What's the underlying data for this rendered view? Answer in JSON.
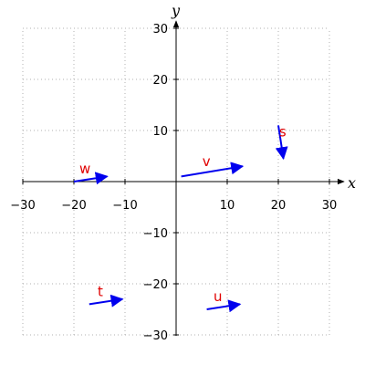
{
  "chart_data": {
    "type": "vector-plot",
    "xlabel": "x",
    "ylabel": "y",
    "xlim": [
      -30,
      30
    ],
    "ylim": [
      -30,
      30
    ],
    "x_ticks": [
      -30,
      -20,
      -10,
      10,
      20,
      30
    ],
    "y_ticks": [
      -30,
      -20,
      -10,
      10,
      20,
      30
    ],
    "grid": true,
    "grid_step": 10,
    "vector_color": "#0000ee",
    "label_color": "#e00000",
    "vectors": [
      {
        "name": "w",
        "x0": -20,
        "y0": 0,
        "x1": -13.5,
        "y1": 1
      },
      {
        "name": "v",
        "x0": 1,
        "y0": 1,
        "x1": 13,
        "y1": 3
      },
      {
        "name": "s",
        "x0": 20,
        "y0": 11,
        "x1": 21,
        "y1": 4.5
      },
      {
        "name": "t",
        "x0": -17,
        "y0": -24,
        "x1": -10.5,
        "y1": -23
      },
      {
        "name": "u",
        "x0": 6,
        "y0": -25,
        "x1": 12.5,
        "y1": -24
      }
    ]
  }
}
